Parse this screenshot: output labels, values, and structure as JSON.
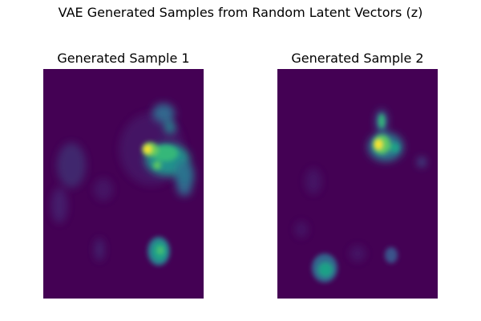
{
  "figure": {
    "title": "VAE Generated Samples from Random Latent Vectors (z)",
    "colormap": "viridis",
    "background_color": "#440154",
    "panels": [
      {
        "title": "Generated Sample 1",
        "blobs": [
          {
            "desc": "bright hotspot",
            "intensity": 1.0
          },
          {
            "desc": "upper-right cluster",
            "intensity": 0.55
          },
          {
            "desc": "top small blob",
            "intensity": 0.4
          },
          {
            "desc": "left faint arc",
            "intensity": 0.3
          },
          {
            "desc": "bottom green blob",
            "intensity": 0.6
          }
        ]
      },
      {
        "title": "Generated Sample 2",
        "blobs": [
          {
            "desc": "bright hotspot",
            "intensity": 1.0
          },
          {
            "desc": "vertical streak",
            "intensity": 0.6
          },
          {
            "desc": "bottom-left blob",
            "intensity": 0.45
          },
          {
            "desc": "faint lower blob",
            "intensity": 0.25
          }
        ]
      }
    ]
  }
}
